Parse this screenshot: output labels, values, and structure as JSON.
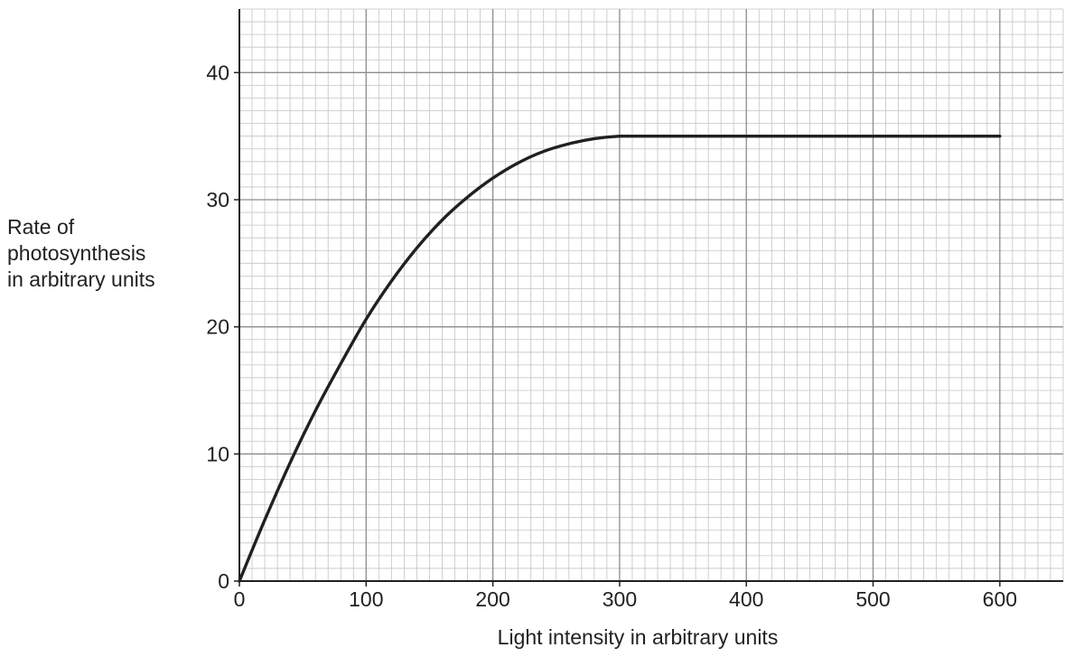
{
  "chart_data": {
    "type": "line",
    "title": "",
    "xlabel": "Light intensity in arbitrary units",
    "ylabel_lines": [
      "Rate of",
      "photosynthesis",
      "in arbitrary units"
    ],
    "xlim": [
      0,
      650
    ],
    "ylim": [
      0,
      45
    ],
    "x_ticks": [
      0,
      100,
      200,
      300,
      400,
      500,
      600
    ],
    "y_ticks": [
      0,
      10,
      20,
      30,
      40
    ],
    "x_tick_labels": [
      "0",
      "100",
      "200",
      "300",
      "400",
      "500",
      "600"
    ],
    "y_tick_labels": [
      "0",
      "10",
      "20",
      "30",
      "40"
    ],
    "grid": true,
    "grid_minor_step": {
      "x": 10,
      "y": 1
    },
    "grid_major_step": {
      "x": 100,
      "y": 10
    },
    "colors": {
      "line": "#231f20",
      "grid_major": "#8c8c8c",
      "grid_minor": "#c4c4c4",
      "axis": "#231f20"
    },
    "series": [
      {
        "values": [
          [
            0,
            0
          ],
          [
            20,
            4.8
          ],
          [
            40,
            9.3
          ],
          [
            60,
            13.4
          ],
          [
            80,
            17.1
          ],
          [
            100,
            20.6
          ],
          [
            120,
            23.6
          ],
          [
            140,
            26.2
          ],
          [
            160,
            28.4
          ],
          [
            180,
            30.2
          ],
          [
            200,
            31.7
          ],
          [
            220,
            32.9
          ],
          [
            240,
            33.8
          ],
          [
            260,
            34.4
          ],
          [
            280,
            34.8
          ],
          [
            300,
            35.0
          ],
          [
            320,
            35.0
          ],
          [
            400,
            35.0
          ],
          [
            500,
            35.0
          ],
          [
            600,
            35.0
          ]
        ]
      }
    ]
  }
}
